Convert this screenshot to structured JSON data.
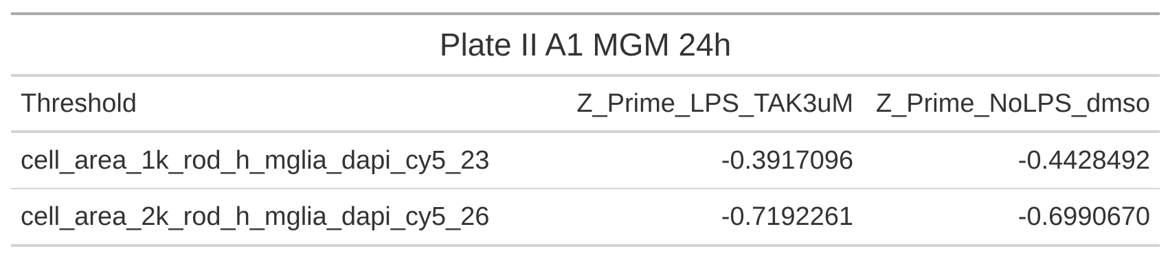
{
  "table": {
    "title": "Plate II A1 MGM 24h",
    "columns": [
      "Threshold",
      "Z_Prime_LPS_TAK3uM",
      "Z_Prime_NoLPS_dmso"
    ],
    "rows": [
      [
        "cell_area_1k_rod_h_mglia_dapi_cy5_23",
        "-0.3917096",
        "-0.4428492"
      ],
      [
        "cell_area_2k_rod_h_mglia_dapi_cy5_26",
        "-0.7192261",
        "-0.6990670"
      ]
    ]
  },
  "colors": {
    "text": "#333333",
    "top_rule": "#a9a9a9",
    "rules": "#d3d3d3"
  }
}
